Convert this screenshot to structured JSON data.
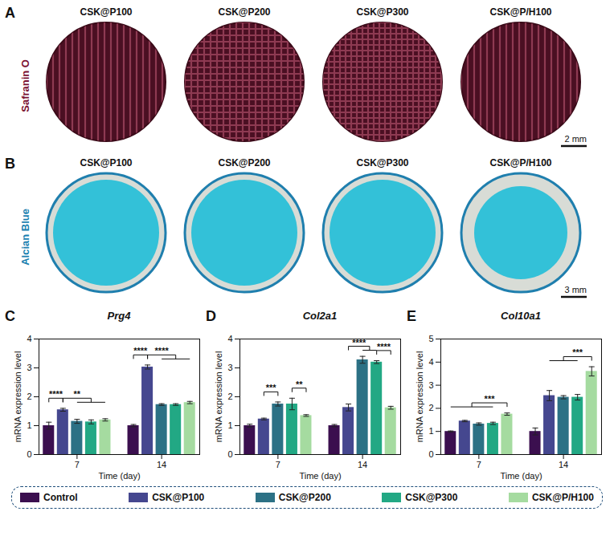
{
  "panels": [
    {
      "label": "A",
      "stain": "Safranin O",
      "samples": [
        "CSK@P100",
        "CSK@P200",
        "CSK@P300",
        "CSK@P/H100"
      ],
      "scale_bar": "2 mm"
    },
    {
      "label": "B",
      "stain": "Alcian Blue",
      "samples": [
        "CSK@P100",
        "CSK@P200",
        "CSK@P300",
        "CSK@P/H100"
      ],
      "scale_bar": "3 mm"
    }
  ],
  "chart_data": [
    {
      "panel": "C",
      "type": "bar",
      "title": "Prg4",
      "x_label": "Time (day)",
      "y_label": "mRNA expression level",
      "categories": [
        "7",
        "14"
      ],
      "series": [
        {
          "name": "Control",
          "color": "#3b0f4f",
          "values": [
            1.0,
            1.0
          ],
          "errors": [
            0.12,
            0.04
          ]
        },
        {
          "name": "CSK@P100",
          "color": "#45478f",
          "values": [
            1.55,
            3.03
          ],
          "errors": [
            0.05,
            0.07
          ]
        },
        {
          "name": "CSK@P200",
          "color": "#2c7185",
          "values": [
            1.15,
            1.73
          ],
          "errors": [
            0.07,
            0.03
          ]
        },
        {
          "name": "CSK@P300",
          "color": "#22a884",
          "values": [
            1.13,
            1.73
          ],
          "errors": [
            0.07,
            0.03
          ]
        },
        {
          "name": "CSK@P/H100",
          "color": "#a5dba0",
          "values": [
            1.2,
            1.8
          ],
          "errors": [
            0.04,
            0.04
          ]
        }
      ],
      "ylim": [
        0,
        4
      ],
      "yticks": [
        0,
        1,
        2,
        3,
        4
      ],
      "legend": "bottom",
      "annotations": [
        {
          "category": "7",
          "from": [
            "Control"
          ],
          "to": [
            "CSK@P100"
          ],
          "text": "****"
        },
        {
          "category": "7",
          "from": [
            "CSK@P100"
          ],
          "to": [
            "CSK@P200",
            "CSK@P300",
            "CSK@P/H100"
          ],
          "text": "**"
        },
        {
          "category": "14",
          "from": [
            "Control"
          ],
          "to": [
            "CSK@P100"
          ],
          "text": "****"
        },
        {
          "category": "14",
          "from": [
            "CSK@P100"
          ],
          "to": [
            "CSK@P200",
            "CSK@P300",
            "CSK@P/H100"
          ],
          "text": "****"
        }
      ]
    },
    {
      "panel": "D",
      "type": "bar",
      "title": "Col2a1",
      "x_label": "Time (day)",
      "y_label": "mRNA expression level",
      "categories": [
        "7",
        "14"
      ],
      "series": [
        {
          "name": "Control",
          "color": "#3b0f4f",
          "values": [
            1.0,
            1.0
          ],
          "errors": [
            0.05,
            0.04
          ]
        },
        {
          "name": "CSK@P100",
          "color": "#45478f",
          "values": [
            1.23,
            1.63
          ],
          "errors": [
            0.03,
            0.12
          ]
        },
        {
          "name": "CSK@P200",
          "color": "#2c7185",
          "values": [
            1.75,
            3.28
          ],
          "errors": [
            0.07,
            0.12
          ]
        },
        {
          "name": "CSK@P300",
          "color": "#22a884",
          "values": [
            1.75,
            3.2
          ],
          "errors": [
            0.2,
            0.05
          ]
        },
        {
          "name": "CSK@P/H100",
          "color": "#a5dba0",
          "values": [
            1.35,
            1.62
          ],
          "errors": [
            0.03,
            0.05
          ]
        }
      ],
      "ylim": [
        0,
        4
      ],
      "yticks": [
        0,
        1,
        2,
        3,
        4
      ],
      "legend": "bottom",
      "annotations": [
        {
          "category": "7",
          "from": [
            "CSK@P100"
          ],
          "to": [
            "CSK@P200"
          ],
          "text": "***"
        },
        {
          "category": "7",
          "from": [
            "CSK@P300"
          ],
          "to": [
            "CSK@P/H100"
          ],
          "text": "**"
        },
        {
          "category": "14",
          "from": [
            "CSK@P100"
          ],
          "to": [
            "CSK@P200",
            "CSK@P300"
          ],
          "text": "****"
        },
        {
          "category": "14",
          "from": [
            "CSK@P300"
          ],
          "to": [
            "CSK@P/H100"
          ],
          "text": "****"
        }
      ]
    },
    {
      "panel": "E",
      "type": "bar",
      "title": "Col10a1",
      "x_label": "Time (day)",
      "y_label": "mRNA expression level",
      "categories": [
        "7",
        "14"
      ],
      "series": [
        {
          "name": "Control",
          "color": "#3b0f4f",
          "values": [
            1.0,
            1.0
          ],
          "errors": [
            0.02,
            0.15
          ]
        },
        {
          "name": "CSK@P100",
          "color": "#45478f",
          "values": [
            1.45,
            2.55
          ],
          "errors": [
            0.03,
            0.22
          ]
        },
        {
          "name": "CSK@P200",
          "color": "#2c7185",
          "values": [
            1.32,
            2.48
          ],
          "errors": [
            0.05,
            0.07
          ]
        },
        {
          "name": "CSK@P300",
          "color": "#22a884",
          "values": [
            1.35,
            2.48
          ],
          "errors": [
            0.05,
            0.12
          ]
        },
        {
          "name": "CSK@P/H100",
          "color": "#a5dba0",
          "values": [
            1.75,
            3.6
          ],
          "errors": [
            0.05,
            0.2
          ]
        }
      ],
      "ylim": [
        0,
        5
      ],
      "yticks": [
        0,
        1,
        2,
        3,
        4,
        5
      ],
      "legend": "bottom",
      "annotations": [
        {
          "category": "7",
          "from": [
            "Control",
            "CSK@P100",
            "CSK@P200",
            "CSK@P300"
          ],
          "to": [
            "CSK@P/H100"
          ],
          "text": "***"
        },
        {
          "category": "14",
          "from": [
            "CSK@P100",
            "CSK@P200",
            "CSK@P300"
          ],
          "to": [
            "CSK@P/H100"
          ],
          "text": "***"
        }
      ]
    }
  ]
}
